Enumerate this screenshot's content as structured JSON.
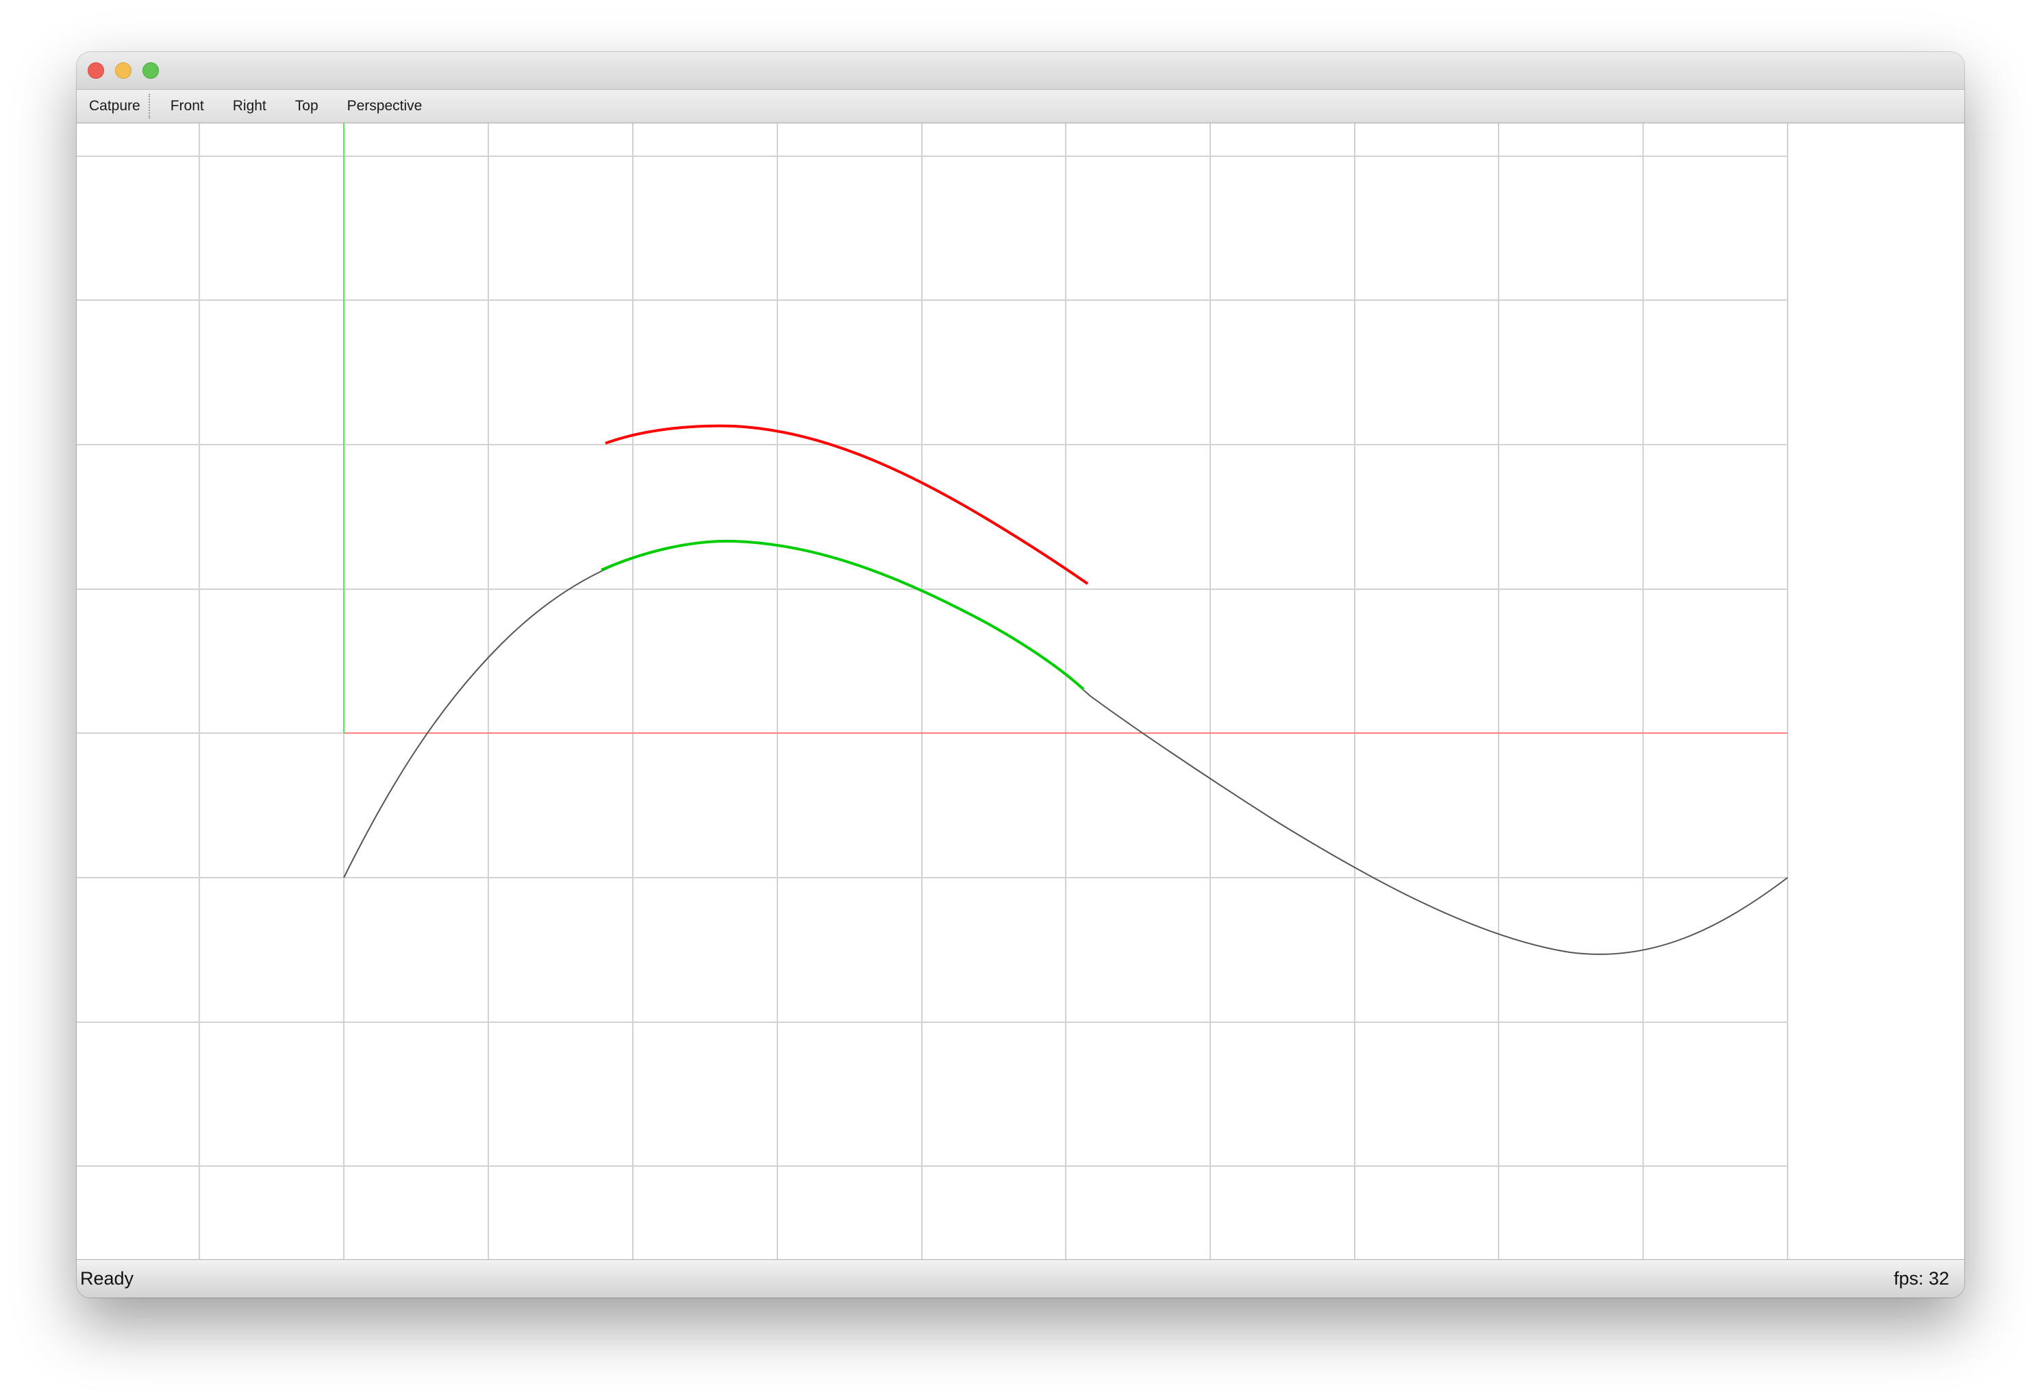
{
  "toolbar": {
    "items": [
      {
        "label": "Catpure"
      },
      {
        "label": "Front"
      },
      {
        "label": "Right"
      },
      {
        "label": "Top"
      },
      {
        "label": "Perspective"
      }
    ]
  },
  "status": {
    "message": "Ready",
    "fps": "fps: 32"
  },
  "colors": {
    "grid": "#d2d2d2",
    "x_axis": "#ff7f7f",
    "y_axis": "#5fe05f",
    "curve": "#555555",
    "selection": "#00cc00",
    "offset_curve": "#ff0000"
  }
}
